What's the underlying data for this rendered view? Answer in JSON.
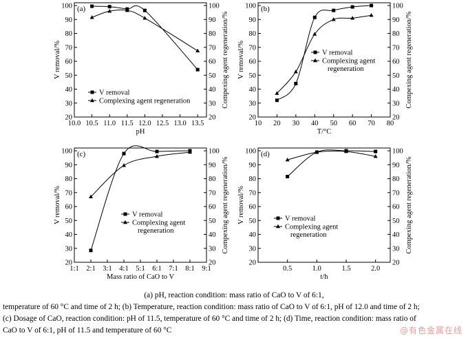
{
  "chart_data": [
    {
      "panel": "(a)",
      "type": "line",
      "xlabel": "pH",
      "ylabel_left": "V removal/%",
      "ylabel_right": "Compexing agent regeneration/%",
      "x_ticks": [
        "10.0",
        "10.5",
        "11.0",
        "11.5",
        "12.0",
        "12.5",
        "13.0",
        "13.5"
      ],
      "y_ticks": [
        "20",
        "30",
        "40",
        "50",
        "60",
        "70",
        "80",
        "90",
        "100"
      ],
      "xlim": [
        10.0,
        13.75
      ],
      "ylim": [
        20,
        102
      ],
      "legend": [
        "V removal",
        "Complexing agent regeneration"
      ],
      "legend_position": "bottom-left",
      "series": [
        {
          "name": "V removal",
          "marker": "square",
          "x": [
            10.5,
            11.0,
            11.5,
            12.0,
            13.5
          ],
          "y": [
            99.5,
            99.2,
            97.5,
            96.5,
            54.0
          ]
        },
        {
          "name": "Complexing agent regeneration",
          "marker": "triangle",
          "x": [
            10.5,
            11.0,
            11.5,
            12.0,
            13.5
          ],
          "y": [
            91.5,
            96.0,
            96.5,
            91.0,
            67.5
          ]
        }
      ]
    },
    {
      "panel": "(b)",
      "type": "line",
      "xlabel": "T/°C",
      "ylabel_left": "V removal/%",
      "ylabel_right": "Compexing agent regeneration/%",
      "x_ticks": [
        "10",
        "20",
        "30",
        "40",
        "50",
        "60",
        "70",
        "80"
      ],
      "y_ticks": [
        "20",
        "30",
        "40",
        "50",
        "60",
        "70",
        "80",
        "90",
        "100"
      ],
      "xlim": [
        10,
        80
      ],
      "ylim": [
        20,
        102
      ],
      "legend": [
        "V removal",
        "Complexing agent regeneration"
      ],
      "legend_position": "center-right",
      "series": [
        {
          "name": "V removal",
          "marker": "square",
          "x": [
            20,
            30,
            40,
            50,
            60,
            70
          ],
          "y": [
            32.0,
            44.0,
            91.5,
            96.5,
            99.0,
            100.0
          ]
        },
        {
          "name": "Complexing agent regeneration",
          "marker": "triangle",
          "x": [
            20,
            30,
            40,
            50,
            60,
            70
          ],
          "y": [
            37.0,
            52.5,
            79.5,
            90.0,
            91.0,
            93.0
          ]
        }
      ]
    },
    {
      "panel": "(c)",
      "type": "line",
      "xlabel": "Mass ratio of CaO to V",
      "ylabel_left": "V removal/%",
      "ylabel_right": "Compexing agent regeneration/%",
      "x_ticks": [
        "1:1",
        "2:1",
        "3:1",
        "4:1",
        "5:1",
        "6:1",
        "7:1",
        "8:1",
        "9:1"
      ],
      "y_ticks": [
        "20",
        "30",
        "40",
        "50",
        "60",
        "70",
        "80",
        "90",
        "100"
      ],
      "xlim": [
        1,
        9
      ],
      "ylim": [
        20,
        102
      ],
      "legend": [
        "V removal",
        "Complexing agent regeneration"
      ],
      "legend_position": "center-right",
      "series": [
        {
          "name": "V removal",
          "marker": "square",
          "x": [
            2,
            4,
            6,
            8
          ],
          "y": [
            28.5,
            98.0,
            99.5,
            100.0
          ]
        },
        {
          "name": "Complexing agent regeneration",
          "marker": "triangle",
          "x": [
            2,
            4,
            6,
            8
          ],
          "y": [
            67.0,
            89.5,
            96.0,
            99.0
          ]
        }
      ]
    },
    {
      "panel": "(d)",
      "type": "line",
      "xlabel": "t/h",
      "ylabel_left": "V removal/%",
      "ylabel_right": "Compexing agent regeneration/%",
      "x_ticks": [
        "0.5",
        "1.0",
        "1.5",
        "2.0"
      ],
      "y_ticks": [
        "20",
        "30",
        "40",
        "50",
        "60",
        "70",
        "80",
        "90",
        "100"
      ],
      "xlim": [
        0.0,
        2.25
      ],
      "ylim": [
        20,
        102
      ],
      "legend": [
        "V removal",
        "Complexing agent regeneration"
      ],
      "legend_position": "bottom-right",
      "series": [
        {
          "name": "V removal",
          "marker": "square",
          "x": [
            0.5,
            1.0,
            1.5,
            2.0
          ],
          "y": [
            81.5,
            99.0,
            100.0,
            99.5
          ]
        },
        {
          "name": "Complexing agent regeneration",
          "marker": "triangle",
          "x": [
            0.5,
            1.0,
            1.5,
            2.0
          ],
          "y": [
            93.5,
            99.0,
            99.5,
            96.0
          ]
        }
      ]
    }
  ],
  "caption": {
    "line1": "(a) pH, reaction condition: mass ratio of CaO to V of 6:1,",
    "line2": "temperature of 60 °C and time of 2 h; (b) Temperature, reaction condition: mass ratio of CaO to V of 6:1, pH of 12.0 and time of 2 h;",
    "line3": "(c) Dosage of CaO, reaction condition: pH of 11.5, temperature of 60 °C and time of 2 h; (d) Time, reaction condition: mass ratio of",
    "line4": "CaO to V of 6:1, pH of 11.5 and temperature of 60 °C"
  },
  "watermark": "@有色金属在线"
}
